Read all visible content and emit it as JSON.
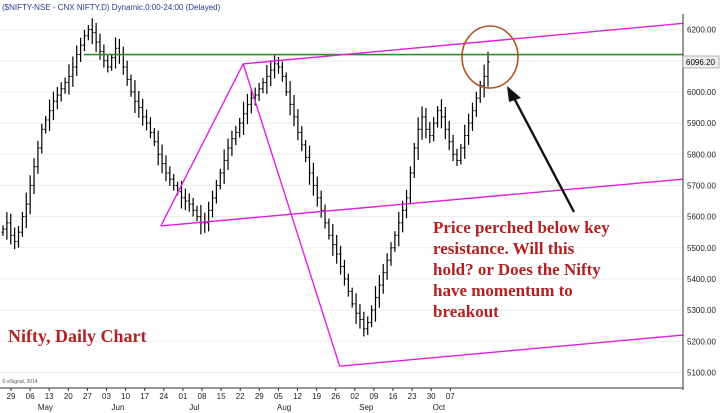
{
  "header": {
    "symbol_line": "($NIFTY-NSE - CNX NIFTY,D) Dynamic,0:00-24:00 (Delayed)"
  },
  "copyright": "© eSignal, 2014",
  "chart_data": {
    "type": "ohlc",
    "title": "Nifty, Daily Chart",
    "annotation": "Price perched below key resistance. Will this hold? or Does the Nifty have momentum to breakout",
    "annotation_lines": [
      "Price perched below key",
      "resistance. Will this",
      "hold? or Does the Nifty",
      "have momentum to",
      "breakout"
    ],
    "last_price_label": "6096.20",
    "ylim": [
      5050,
      6250
    ],
    "y_ticks": [
      "5100.00",
      "5200.00",
      "5300.00",
      "5400.00",
      "5500.00",
      "5600.00",
      "5700.00",
      "5800.00",
      "5900.00",
      "6000.00",
      "6100.00",
      "6200.00"
    ],
    "x_ticks": [
      "29",
      "06",
      "13",
      "20",
      "27",
      "03",
      "10",
      "17",
      "24",
      "01",
      "08",
      "15",
      "22",
      "29",
      "05",
      "12",
      "19",
      "26",
      "02",
      "09",
      "16",
      "23",
      "30",
      "07"
    ],
    "months": [
      "May",
      "Jun",
      "Jul",
      "Aug",
      "Sep",
      "Oct"
    ],
    "resistance_level": 6120,
    "series_colors": {
      "bars": "#000000",
      "resistance": "#2e8b2e",
      "channel": "#e020e0",
      "circle": "#b5542a",
      "arrow": "#111111"
    },
    "channel_lines": [
      {
        "from": [
          "Jun-24",
          5570
        ],
        "to": [
          "Jul-22",
          6090
        ]
      },
      {
        "from": [
          "Jun-24",
          5570
        ],
        "to": [
          "Oct-14",
          5720
        ]
      },
      {
        "from": [
          "Jul-22",
          6090
        ],
        "to": [
          "Oct-14",
          6220
        ]
      },
      {
        "from": [
          "Jul-22",
          6090
        ],
        "to": [
          "Aug-28",
          5120
        ]
      },
      {
        "from": [
          "Aug-28",
          5120
        ],
        "to": [
          "Oct-14",
          5220
        ]
      }
    ],
    "prices": [
      5560,
      5580,
      5540,
      5520,
      5550,
      5600,
      5640,
      5700,
      5760,
      5820,
      5880,
      5910,
      5940,
      5970,
      5990,
      6010,
      6030,
      6050,
      6080,
      6120,
      6150,
      6180,
      6200,
      6190,
      6160,
      6130,
      6100,
      6080,
      6110,
      6140,
      6120,
      6080,
      6040,
      6000,
      5970,
      5950,
      5920,
      5900,
      5870,
      5840,
      5800,
      5770,
      5740,
      5720,
      5700,
      5680,
      5660,
      5650,
      5640,
      5620,
      5600,
      5580,
      5580,
      5620,
      5660,
      5700,
      5740,
      5780,
      5820,
      5850,
      5870,
      5900,
      5930,
      5960,
      5980,
      5990,
      6010,
      6030,
      6050,
      6070,
      6090,
      6080,
      6050,
      6000,
      5960,
      5920,
      5870,
      5830,
      5790,
      5740,
      5700,
      5660,
      5620,
      5580,
      5540,
      5510,
      5480,
      5440,
      5400,
      5360,
      5320,
      5290,
      5270,
      5240,
      5260,
      5300,
      5340,
      5380,
      5420,
      5460,
      5500,
      5540,
      5580,
      5620,
      5660,
      5740,
      5820,
      5880,
      5920,
      5880,
      5860,
      5900,
      5940,
      5920,
      5880,
      5840,
      5800,
      5780,
      5820,
      5860,
      5900,
      5940,
      5980,
      6020,
      6050,
      6096
    ]
  }
}
